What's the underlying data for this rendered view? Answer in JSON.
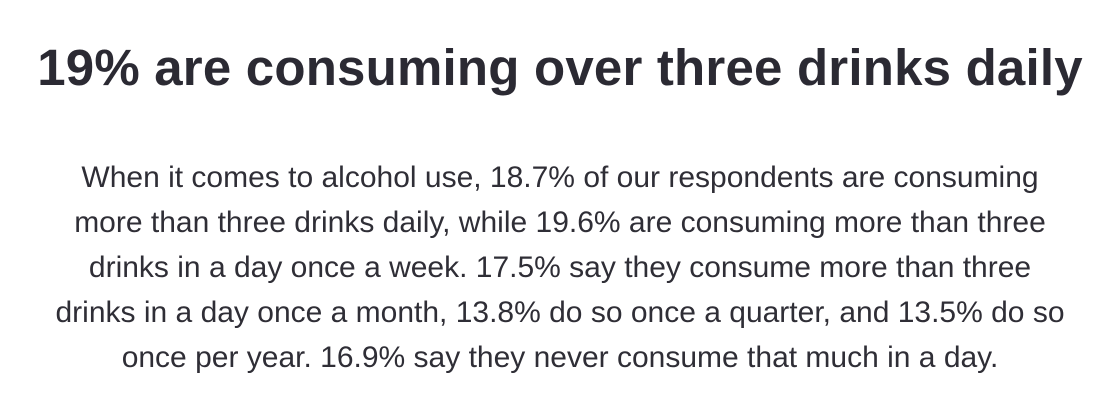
{
  "article": {
    "heading": "19% are consuming over three drinks daily",
    "paragraph_lines": [
      "When it comes to alcohol use, 18.7% of our respondents are consuming",
      "more than three drinks daily, while 19.6% are consuming more than three",
      "drinks in a day once a week. 17.5% say they consume more than three",
      "drinks in a day once a month, 13.8% do so once a quarter, and 13.5% do so",
      "once per year. 16.9% say they never consume that much in a day."
    ]
  },
  "colors": {
    "text": "#2b2a33",
    "background": "#ffffff"
  }
}
